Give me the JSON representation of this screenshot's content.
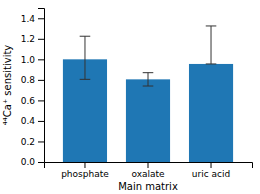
{
  "chart_data": {
    "type": "bar",
    "xlabel": "Main matrix",
    "ylabel": "⁴⁴Ca⁺ sensitivity",
    "categories": [
      "phosphate",
      "oxalate",
      "uric acid"
    ],
    "values": [
      1.0,
      0.805,
      0.955
    ],
    "errors_upper": [
      0.225,
      0.065,
      0.37
    ],
    "errors_lower": [
      0.195,
      0.065,
      0.0
    ],
    "ylim": [
      0.0,
      1.5
    ],
    "yticks": [
      {
        "value": 0.0,
        "label": "0.0"
      },
      0.2,
      0.4,
      0.6,
      0.8,
      {
        "value": 1.0,
        "label": "1.0"
      },
      1.2,
      1.4
    ],
    "grid": false
  }
}
